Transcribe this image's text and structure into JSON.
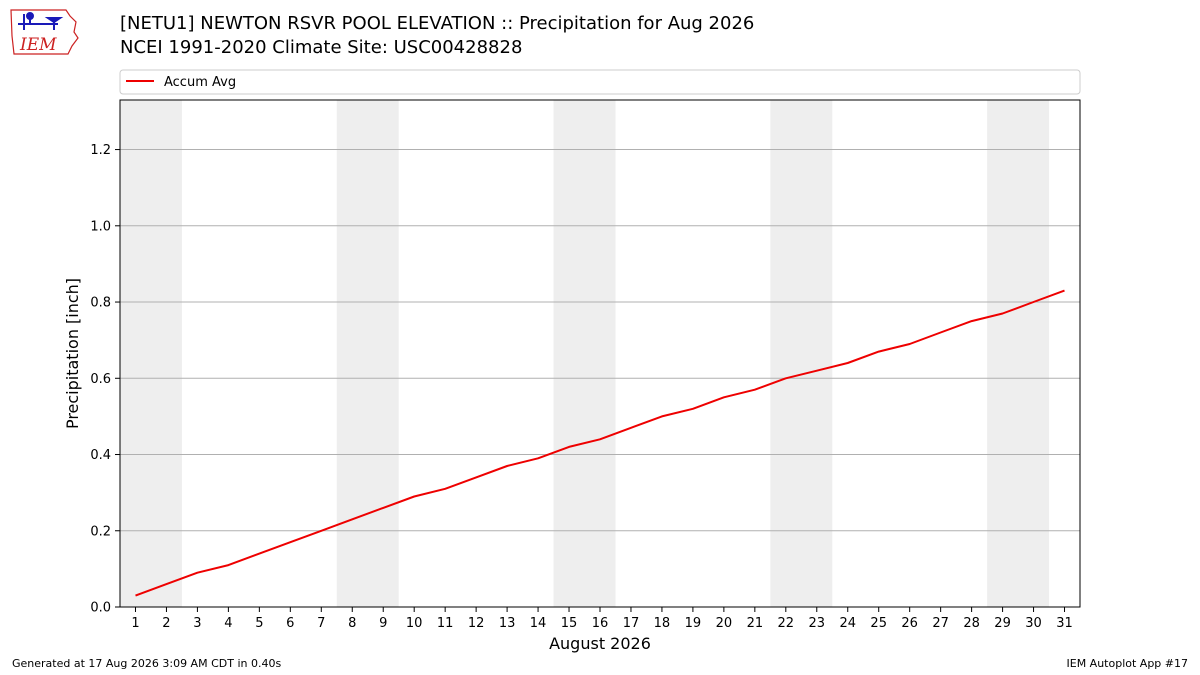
{
  "header": {
    "title": "[NETU1] NEWTON RSVR POOL ELEVATION :: Precipitation for Aug 2026",
    "subtitle": "NCEI 1991-2020 Climate Site: USC00428828"
  },
  "logo": {
    "text": "IEM",
    "icon": "iem-iowa-logo-icon"
  },
  "footer": {
    "generated": "Generated at 17 Aug 2026 3:09 AM CDT in 0.40s",
    "app": "IEM Autoplot App #17"
  },
  "colors": {
    "line": "#ee0000",
    "weekend_band": "#eeeeee",
    "grid": "#b0b0b0",
    "logo_red": "#cc2222",
    "logo_blue": "#1a1ab8"
  },
  "chart_data": {
    "type": "line",
    "xlabel": "August 2026",
    "ylabel": "Precipitation [inch]",
    "x": [
      1,
      2,
      3,
      4,
      5,
      6,
      7,
      8,
      9,
      10,
      11,
      12,
      13,
      14,
      15,
      16,
      17,
      18,
      19,
      20,
      21,
      22,
      23,
      24,
      25,
      26,
      27,
      28,
      29,
      30,
      31
    ],
    "xlim": [
      0.5,
      31.5
    ],
    "ylim": [
      0,
      1.33
    ],
    "yticks": [
      "0.0",
      "0.2",
      "0.4",
      "0.6",
      "0.8",
      "1.0",
      "1.2"
    ],
    "ytick_values": [
      0,
      0.2,
      0.4,
      0.6,
      0.8,
      1.0,
      1.2
    ],
    "grid": "horizontal",
    "legend": "top, above plot",
    "weekend_bands": [
      [
        1,
        2
      ],
      [
        8,
        9
      ],
      [
        15,
        16
      ],
      [
        22,
        23
      ],
      [
        29,
        30
      ]
    ],
    "series": [
      {
        "name": "Accum Avg",
        "values": [
          0.03,
          0.06,
          0.09,
          0.11,
          0.14,
          0.17,
          0.2,
          0.23,
          0.26,
          0.29,
          0.31,
          0.34,
          0.37,
          0.39,
          0.42,
          0.44,
          0.47,
          0.5,
          0.52,
          0.55,
          0.57,
          0.6,
          0.62,
          0.64,
          0.67,
          0.69,
          0.72,
          0.75,
          0.77,
          0.8,
          0.83
        ]
      }
    ]
  }
}
